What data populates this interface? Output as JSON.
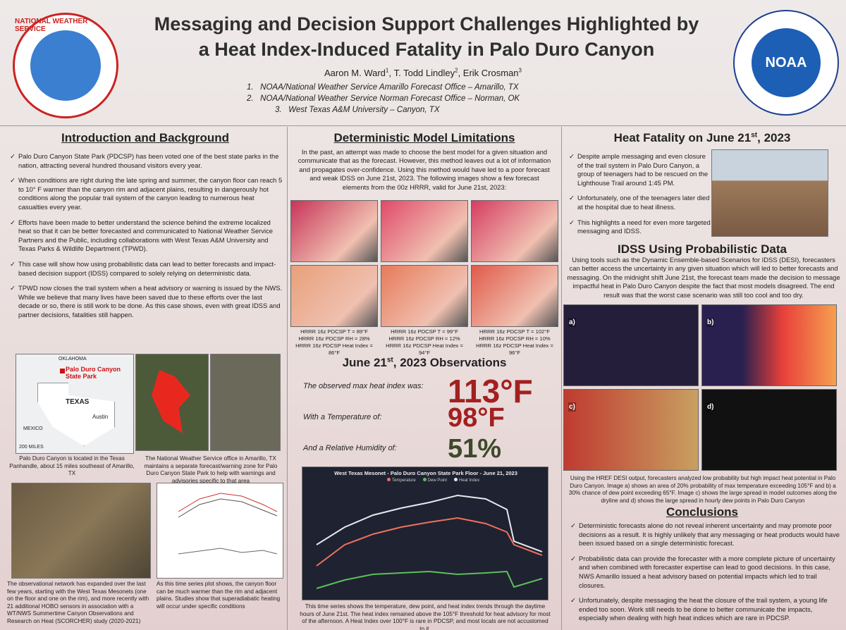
{
  "header": {
    "title_lines": [
      "Messaging and Decision Support Challenges Highlighted by",
      "a Heat Index-Induced Fatality in Palo Duro Canyon"
    ],
    "authors": [
      {
        "name": "Aaron M. Ward",
        "sup": "1"
      },
      {
        "name": "T. Todd Lindley",
        "sup": "2"
      },
      {
        "name": "Erik Crosman",
        "sup": "3"
      }
    ],
    "affiliations": [
      "1.   NOAA/National Weather Service Amarillo Forecast Office – Amarillo, TX",
      "2.   NOAA/National Weather Service Norman Forecast Office – Norman, OK",
      "3.   West Texas A&M University – Canyon, TX"
    ],
    "left_logo": "NATIONAL WEATHER SERVICE",
    "right_logo": "NOAA"
  },
  "intro": {
    "heading": "Introduction and Background",
    "bullets": [
      "Palo Duro Canyon State Park (PDCSP) has been voted one of the best state parks in the nation, attracting several hundred thousand visitors every year.",
      "When conditions are right during the late spring and summer, the canyon floor can reach 5 to 10° F warmer than the canyon rim and adjacent plains, resulting in dangerously hot conditions along the popular trail system of the canyon leading to numerous heat casualties every year.",
      "Efforts have been made to better understand the science behind the extreme localized heat so that it can be better forecasted and communicated to National Weather Service Partners and the Public, including collaborations with West Texas A&M University and Texas Parks & Wildlife Department (TPWD).",
      "This case will show how using probabilistic data can lead to better forecasts and impact-based decision support (IDSS) compared to solely relying on deterministic data.",
      "TPWD now closes the trail system when a heat advisory or warning is issued by the NWS. While we believe that many lives have been saved due to these efforts over the last decade or so, there is still work to be done. As this case shows, even with great IDSS and partner decisions, fatalities still happen."
    ],
    "map_labels": [
      "Palo Duro Canyon State Park",
      "TEXAS",
      "Austin",
      "OKLAHOMA",
      "MEXICO",
      "200 MILES"
    ],
    "caption_map": "Palo Duro Canyon is located in the Texas Panhandle, about 15 miles southeast of Amarillo, TX",
    "caption_zone": "The National Weather Service office in Amarillo, TX maintains a separate forecast/warning zone for Palo Duro Canyon State Park to help with warnings and advisories specific to that area",
    "caption_network": "The observational network has expanded over the last few years, starting with the West Texas Mesonets (one on the floor and one on the rim), and more recently with 21 additional HOBO sensors in association with a WT/NWS Summertime Canyon Observations and Research on Heat (SCORCHER) study (2020-2021)",
    "caption_series": "As this time series plot shows, the canyon floor can be much warmer than the rim and adjacent plains. Studies show that superadiabatic heating will occur under specific conditions"
  },
  "models": {
    "heading": "Deterministic Model Limitations",
    "paragraph": "In the past, an attempt was made to choose the best model  for a given situation and communicate that as the forecast. However, this method leaves out a lot of information and propagates over-confidence. Using this method would have led to a poor forecast and weak IDSS on June 21st, 2023. The following images show a few forecast elements from the 00z HRRR, valid for June 21st, 2023:",
    "panel_captions": [
      [
        "HRRR 16z PDCSP T = 89°F",
        "HRRR 16z PDCSP RH = 28%",
        "HRRR 16z PDCSP Heat Index = 86°F"
      ],
      [
        "HRRR 16z PDCSP T = 99°F",
        "HRRR 16z PDCSP RH = 12%",
        "HRRR 16z PDCSP Heat Index = 94°F"
      ],
      [
        "HRRR 16z PDCSP T = 102°F",
        "HRRR 16z PDCSP RH = 10%",
        "HRRR 16z PDCSP Heat Index = 96°F"
      ]
    ]
  },
  "observations": {
    "heading": "June 21st, 2023 Observations",
    "rows": [
      {
        "label": "The observed max heat index was:",
        "value": "113°F"
      },
      {
        "label": "With a Temperature of:",
        "value": "98°F"
      },
      {
        "label": "And a Relative Humidity of:",
        "value": "51%"
      }
    ],
    "chart_title": "West Texas Mesonet - Palo Duro Canyon State Park Floor - June 21, 2023",
    "chart_legend": [
      "Temperature",
      "Dew Point",
      "Heat Index"
    ],
    "chart_caption": "This time series shows the temperature, dew point, and heat index trends through the daytime hours of June 21st. The heat index remained above the 105°F threshold for heat advisory for most of the afternoon. A Heat Index over 100°F is rare in PDCSP, and most locals are not accustomed to it."
  },
  "fatality": {
    "heading": "Heat Fatality on June 21st, 2023",
    "bullets": [
      "Despite ample messaging and even closure of the trail system in Palo Duro Canyon, a group of teenagers had to be rescued on the Lighthouse Trail around 1:45 PM.",
      "Unfortunately, one of the teenagers later died at the hospital due to heat illness.",
      "This highlights a need for even more targeted messaging and IDSS."
    ]
  },
  "idss": {
    "heading": "IDSS Using Probabilistic Data",
    "paragraph": "Using tools such as the Dynamic Ensemble-based Scenarios for IDSS (DESI), forecasters can better access the uncertainty in any given situation which will led to better forecasts and messaging. On the midnight shift June 21st, the forecast team made the decision to message impactful heat in Palo Duro Canyon despite the fact that most models disagreed. The end result was that the worst case scenario was still too cool and too dry.",
    "panel_letters": [
      "a)",
      "b)",
      "c)",
      "d)"
    ],
    "caption": "Using the HREF DESI output, forecasters analyzed low probability but high impact heat potential in Palo Duro Canyon. Image a) shows an area of 20% probability of max temperature exceeding 105°F and b) a 30% chance of dew point exceeding 65°F. Image c) shows the large spread in model outcomes along the dryline and d) shows the large spread in hourly dew points in Palo Duro Canyon"
  },
  "conclusions": {
    "heading": "Conclusions",
    "bullets": [
      "Deterministic forecasts alone do not reveal inherent uncertainty and may promote poor decisions as a result. It is highly unlikely that any messaging or heat products would have been issued based on a single deterministic forecast.",
      "Probabilistic data can provide the forecaster with a more complete picture of uncertainty and when combined with forecaster expertise can lead to good decisions. In this case, NWS Amarillo issued a heat advisory based on potential impacts which led to trail closures.",
      "Unfortunately, despite messaging the heat the closure of the trail system, a young life ended too soon. Work still needs to be done to better communicate the impacts, especially when dealing with high heat indices which are rare in PDCSP."
    ]
  }
}
